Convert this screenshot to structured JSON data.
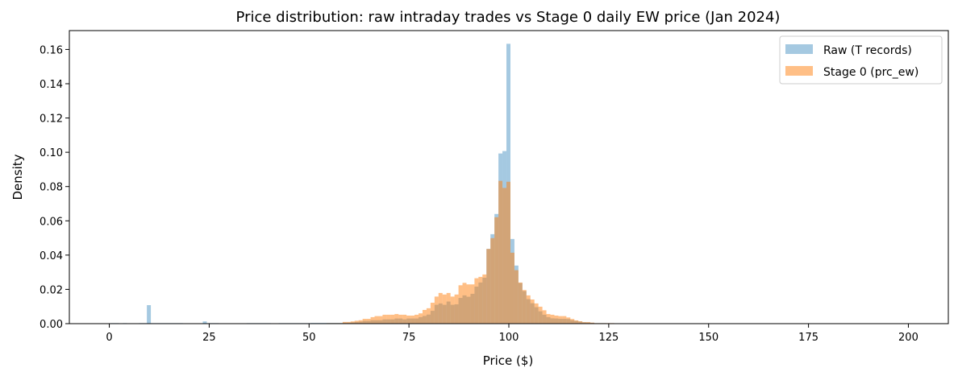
{
  "chart_data": {
    "type": "histogram",
    "title": "Price distribution: raw intraday trades vs Stage 0 daily EW price (Jan 2024)",
    "xlabel": "Price ($)",
    "ylabel": "Density",
    "xlim": [
      -10,
      210
    ],
    "ylim": [
      0,
      0.171
    ],
    "xticks": [
      0,
      25,
      50,
      75,
      100,
      125,
      150,
      175,
      200
    ],
    "xtick_labels": [
      "0",
      "25",
      "50",
      "75",
      "100",
      "125",
      "150",
      "175",
      "200"
    ],
    "yticks": [
      0,
      0.02,
      0.04,
      0.06,
      0.08,
      0.1,
      0.12,
      0.14,
      0.16
    ],
    "ytick_labels": [
      "0.00",
      "0.02",
      "0.04",
      "0.06",
      "0.08",
      "0.10",
      "0.12",
      "0.14",
      "0.16"
    ],
    "grid": false,
    "legend_position": "top-right",
    "bin_width": 1,
    "series": [
      {
        "name": "Raw (T records)",
        "color": "#1f77b4",
        "alpha": 0.4,
        "bins": [
          [
            1,
            0.0003
          ],
          [
            2,
            0.0003
          ],
          [
            4,
            0.0003
          ],
          [
            8,
            0.0003
          ],
          [
            9,
            0.0003
          ],
          [
            10,
            0.0108
          ],
          [
            11,
            0.0003
          ],
          [
            12,
            0.0003
          ],
          [
            13,
            0.0003
          ],
          [
            14,
            0.0003
          ],
          [
            15,
            0.0003
          ],
          [
            16,
            0.0003
          ],
          [
            17,
            0.0003
          ],
          [
            18,
            0.0003
          ],
          [
            24,
            0.0013
          ],
          [
            25,
            0.0003
          ],
          [
            26,
            0.0003
          ],
          [
            27,
            0.0003
          ],
          [
            35,
            0.0003
          ],
          [
            36,
            0.0003
          ],
          [
            37,
            0.0003
          ],
          [
            38,
            0.0003
          ],
          [
            39,
            0.0003
          ],
          [
            40,
            0.0003
          ],
          [
            43,
            0.0003
          ],
          [
            44,
            0.0003
          ],
          [
            45,
            0.0003
          ],
          [
            46,
            0.0003
          ],
          [
            47,
            0.0003
          ],
          [
            48,
            0.0003
          ],
          [
            49,
            0.0003
          ],
          [
            50,
            0.0003
          ],
          [
            51,
            0.0004
          ],
          [
            52,
            0.0004
          ],
          [
            53,
            0.0004
          ],
          [
            54,
            0.0004
          ],
          [
            55,
            0.0004
          ],
          [
            56,
            0.0004
          ],
          [
            57,
            0.0004
          ],
          [
            58,
            0.0004
          ],
          [
            59,
            0.0006
          ],
          [
            60,
            0.0006
          ],
          [
            61,
            0.0008
          ],
          [
            62,
            0.001
          ],
          [
            63,
            0.0012
          ],
          [
            64,
            0.0016
          ],
          [
            65,
            0.0016
          ],
          [
            66,
            0.002
          ],
          [
            67,
            0.002
          ],
          [
            68,
            0.002
          ],
          [
            69,
            0.0025
          ],
          [
            70,
            0.0025
          ],
          [
            71,
            0.0025
          ],
          [
            72,
            0.003
          ],
          [
            73,
            0.003
          ],
          [
            74,
            0.0025
          ],
          [
            75,
            0.003
          ],
          [
            76,
            0.003
          ],
          [
            77,
            0.003
          ],
          [
            78,
            0.0038
          ],
          [
            79,
            0.0045
          ],
          [
            80,
            0.0053
          ],
          [
            81,
            0.0075
          ],
          [
            82,
            0.011
          ],
          [
            83,
            0.0118
          ],
          [
            84,
            0.011
          ],
          [
            85,
            0.0129
          ],
          [
            86,
            0.011
          ],
          [
            87,
            0.0113
          ],
          [
            88,
            0.015
          ],
          [
            89,
            0.0165
          ],
          [
            90,
            0.0157
          ],
          [
            91,
            0.0174
          ],
          [
            92,
            0.0216
          ],
          [
            93,
            0.024
          ],
          [
            94,
            0.0268
          ],
          [
            95,
            0.0436
          ],
          [
            96,
            0.0522
          ],
          [
            97,
            0.064
          ],
          [
            98,
            0.0993
          ],
          [
            99,
            0.1007
          ],
          [
            100,
            0.1633
          ],
          [
            101,
            0.0494
          ],
          [
            102,
            0.0339
          ],
          [
            103,
            0.0237
          ],
          [
            104,
            0.019
          ],
          [
            105,
            0.0143
          ],
          [
            106,
            0.0119
          ],
          [
            107,
            0.0096
          ],
          [
            108,
            0.0072
          ],
          [
            109,
            0.0052
          ],
          [
            110,
            0.0038
          ],
          [
            111,
            0.0031
          ],
          [
            112,
            0.003
          ],
          [
            113,
            0.0028
          ],
          [
            114,
            0.0028
          ],
          [
            115,
            0.0027
          ],
          [
            116,
            0.002
          ],
          [
            117,
            0.0016
          ],
          [
            118,
            0.0012
          ],
          [
            119,
            0.0008
          ],
          [
            120,
            0.0007
          ],
          [
            121,
            0.0005
          ],
          [
            122,
            0.0003
          ],
          [
            123,
            0.0003
          ],
          [
            124,
            0.0003
          ],
          [
            125,
            0.0002
          ],
          [
            126,
            0.0002
          ],
          [
            127,
            0.0002
          ],
          [
            128,
            0.0002
          ],
          [
            129,
            0.0002
          ],
          [
            130,
            0.0002
          ],
          [
            131,
            0.0002
          ],
          [
            132,
            0.0002
          ],
          [
            133,
            0.0002
          ],
          [
            134,
            0.0002
          ],
          [
            135,
            0.0002
          ],
          [
            136,
            0.0002
          ]
        ]
      },
      {
        "name": "Stage 0 (prc_ew)",
        "color": "#ff7f0e",
        "alpha": 0.5,
        "bins": [
          [
            25,
            0.0002
          ],
          [
            26,
            0.0002
          ],
          [
            27,
            0.0002
          ],
          [
            55,
            0.0003
          ],
          [
            56,
            0.0003
          ],
          [
            57,
            0.0003
          ],
          [
            58,
            0.0003
          ],
          [
            59,
            0.001
          ],
          [
            60,
            0.001
          ],
          [
            61,
            0.0013
          ],
          [
            62,
            0.0017
          ],
          [
            63,
            0.002
          ],
          [
            64,
            0.0028
          ],
          [
            65,
            0.0028
          ],
          [
            66,
            0.0038
          ],
          [
            67,
            0.0044
          ],
          [
            68,
            0.0044
          ],
          [
            69,
            0.0052
          ],
          [
            70,
            0.0052
          ],
          [
            71,
            0.0052
          ],
          [
            72,
            0.0056
          ],
          [
            73,
            0.0052
          ],
          [
            74,
            0.0052
          ],
          [
            75,
            0.0047
          ],
          [
            76,
            0.0047
          ],
          [
            77,
            0.0052
          ],
          [
            78,
            0.006
          ],
          [
            79,
            0.008
          ],
          [
            80,
            0.009
          ],
          [
            81,
            0.0122
          ],
          [
            82,
            0.0158
          ],
          [
            83,
            0.0179
          ],
          [
            84,
            0.017
          ],
          [
            85,
            0.0179
          ],
          [
            86,
            0.0158
          ],
          [
            87,
            0.017
          ],
          [
            88,
            0.0224
          ],
          [
            89,
            0.0238
          ],
          [
            90,
            0.0229
          ],
          [
            91,
            0.0229
          ],
          [
            92,
            0.0265
          ],
          [
            93,
            0.0273
          ],
          [
            94,
            0.0287
          ],
          [
            95,
            0.0436
          ],
          [
            96,
            0.0499
          ],
          [
            97,
            0.0621
          ],
          [
            98,
            0.0833
          ],
          [
            99,
            0.0792
          ],
          [
            100,
            0.0828
          ],
          [
            101,
            0.0414
          ],
          [
            102,
            0.0312
          ],
          [
            103,
            0.024
          ],
          [
            104,
            0.0196
          ],
          [
            105,
            0.0165
          ],
          [
            106,
            0.0141
          ],
          [
            107,
            0.0118
          ],
          [
            108,
            0.0099
          ],
          [
            109,
            0.0078
          ],
          [
            110,
            0.0056
          ],
          [
            111,
            0.0052
          ],
          [
            112,
            0.0047
          ],
          [
            113,
            0.0044
          ],
          [
            114,
            0.0044
          ],
          [
            115,
            0.0036
          ],
          [
            116,
            0.0027
          ],
          [
            117,
            0.0019
          ],
          [
            118,
            0.0014
          ],
          [
            119,
            0.0009
          ],
          [
            120,
            0.0009
          ],
          [
            121,
            0.0006
          ],
          [
            122,
            0.0003
          ],
          [
            123,
            0.0003
          ],
          [
            124,
            0.0003
          ],
          [
            125,
            0.0003
          ],
          [
            126,
            0.0003
          ]
        ]
      }
    ]
  }
}
